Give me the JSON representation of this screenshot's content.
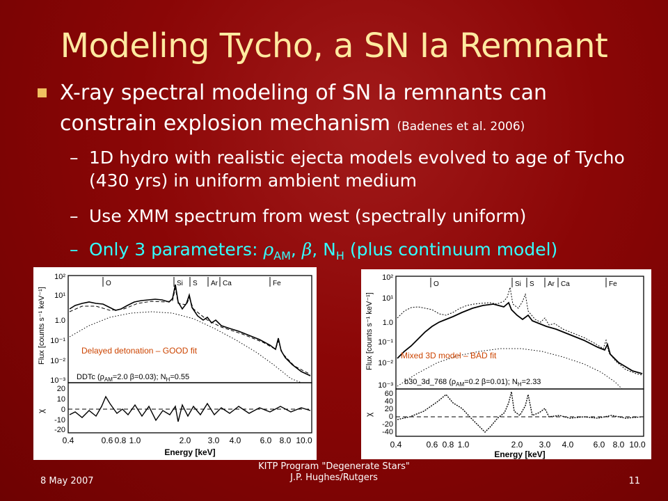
{
  "slide": {
    "title": "Modeling Tycho, a SN Ia Remnant",
    "bullet": {
      "text": "X-ray spectral modeling of SN Ia remnants can constrain explosion mechanism",
      "citation": "(Badenes et al. 2006)"
    },
    "subbullets": [
      {
        "text": "1D hydro with realistic ejecta models evolved to age of Tycho (430 yrs) in uniform ambient medium"
      },
      {
        "text": "Use XMM spectrum from west (spectrally uniform)"
      },
      {
        "prefix": "Only 3 parameters: ",
        "rho": "ρ",
        "rho_sub": "AM",
        "sep1": ", ",
        "beta": "β",
        "sep2": ", N",
        "nh_sub": "H",
        "suffix": " (plus continuum model)"
      }
    ],
    "dash": "–",
    "footer": {
      "date": "8 May 2007",
      "center_line1": "KITP Program \"Degenerate Stars\"",
      "center_line2": "J.P. Hughes/Rutgers",
      "page": "11"
    },
    "colors": {
      "background": "#8b0000",
      "title": "#ffeaa0",
      "highlight": "#33ffff",
      "annotation": "#cc4400"
    }
  },
  "chart_data": [
    {
      "type": "line",
      "annotation": "Delayed detonation – GOOD fit",
      "model_label": "DDTc (ρ",
      "model_sub": "AM",
      "model_rest": "=2.0 β=0.03); N",
      "model_sub2": "H",
      "model_end": "=0.55",
      "ylabel_top": "Flux [counts s⁻¹ keV⁻¹]",
      "ylabel_bottom": "χ",
      "xlabel": "Energy [keV]",
      "x_ticks": [
        "0.4",
        "0.6",
        "0.8",
        "1.0",
        "2.0",
        "3.0",
        "4.0",
        "6.0",
        "8.0",
        "10.0"
      ],
      "y_ticks_top": [
        "10²",
        "10¹",
        "1.0",
        "10⁻¹",
        "10⁻²",
        "10⁻³"
      ],
      "y_ticks_bottom": [
        "20",
        "10",
        "0",
        "-10",
        "-20"
      ],
      "lines": [
        "O",
        "Si",
        "S",
        "Ar",
        "Ca",
        "Fe"
      ]
    },
    {
      "type": "line",
      "annotation": "Mixed 3D model – BAD fit",
      "model_label": "b30_3d_768 (ρ",
      "model_sub": "AM",
      "model_rest": "=0.2 β=0.01); N",
      "model_sub2": "H",
      "model_end": "=2.33",
      "ylabel_top": "Flux [counts s⁻¹ keV⁻¹]",
      "ylabel_bottom": "χ",
      "xlabel": "Energy [keV]",
      "x_ticks": [
        "0.4",
        "0.6",
        "0.8",
        "1.0",
        "2.0",
        "3.0",
        "4.0",
        "6.0",
        "8.0",
        "10.0"
      ],
      "y_ticks_top": [
        "10²",
        "10¹",
        "1.0",
        "10⁻¹",
        "10⁻²",
        "10⁻³"
      ],
      "y_ticks_bottom": [
        "60",
        "40",
        "20",
        "0",
        "-20",
        "-40"
      ],
      "lines": [
        "O",
        "Si",
        "S",
        "Ar",
        "Ca",
        "Fe"
      ]
    }
  ]
}
